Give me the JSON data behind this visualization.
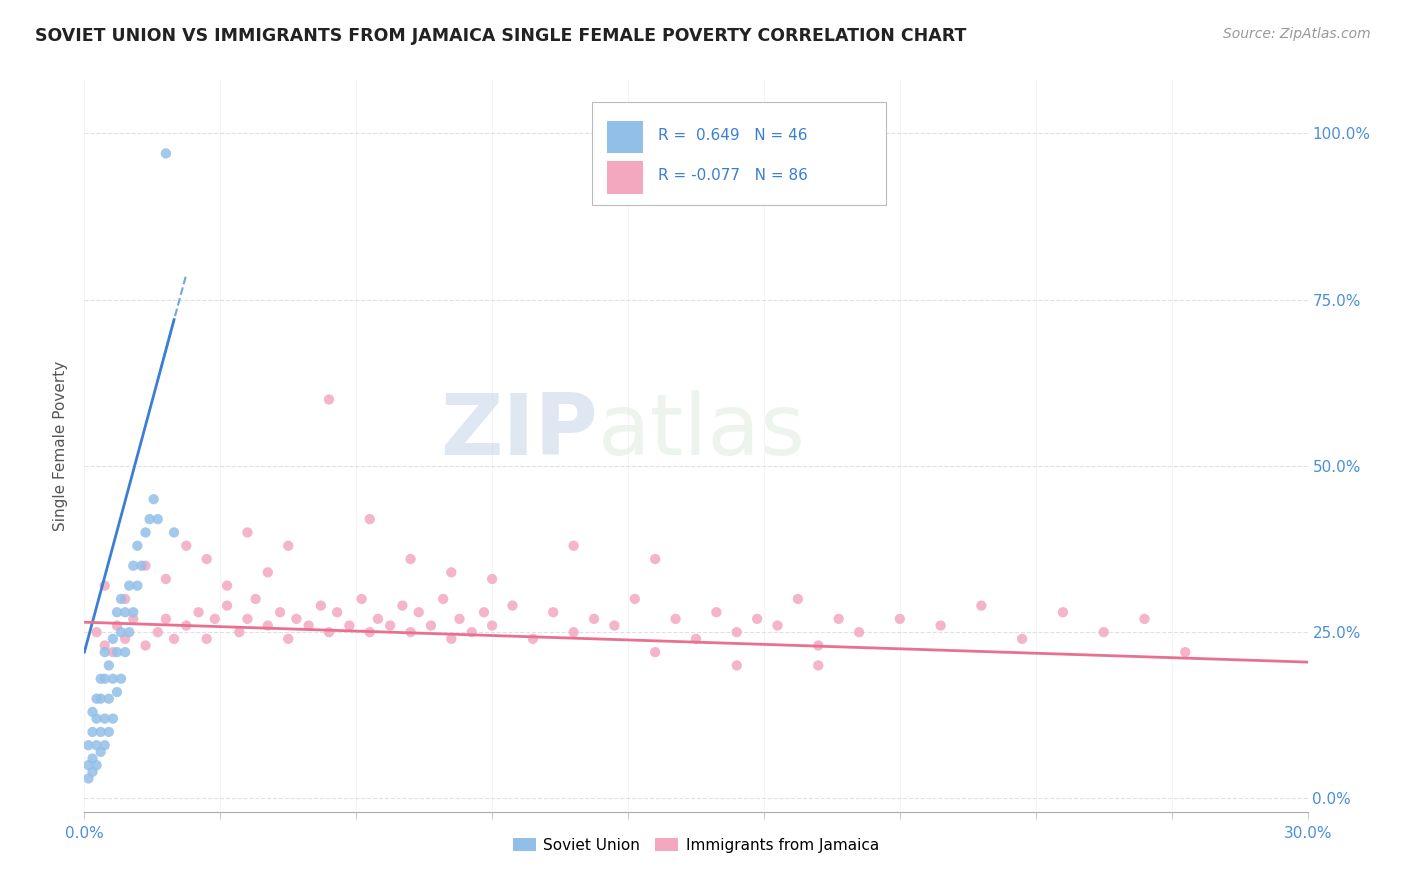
{
  "title": "SOVIET UNION VS IMMIGRANTS FROM JAMAICA SINGLE FEMALE POVERTY CORRELATION CHART",
  "source": "Source: ZipAtlas.com",
  "ylabel": "Single Female Poverty",
  "y_tick_labels": [
    "0.0%",
    "25.0%",
    "50.0%",
    "75.0%",
    "100.0%"
  ],
  "y_tick_values": [
    0.0,
    0.25,
    0.5,
    0.75,
    1.0
  ],
  "xlim": [
    0.0,
    0.3
  ],
  "ylim": [
    -0.02,
    1.08
  ],
  "r_soviet": 0.649,
  "n_soviet": 46,
  "r_jamaica": -0.077,
  "n_jamaica": 86,
  "soviet_color": "#92bfe8",
  "jamaica_color": "#f4a8c0",
  "soviet_line_color": "#3a7fd5",
  "jamaica_line_color": "#e87090",
  "background_color": "#ffffff",
  "soviet_points_x": [
    0.001,
    0.001,
    0.001,
    0.002,
    0.002,
    0.002,
    0.002,
    0.003,
    0.003,
    0.003,
    0.003,
    0.004,
    0.004,
    0.004,
    0.004,
    0.005,
    0.005,
    0.005,
    0.005,
    0.006,
    0.006,
    0.006,
    0.007,
    0.007,
    0.007,
    0.008,
    0.008,
    0.008,
    0.009,
    0.009,
    0.009,
    0.01,
    0.01,
    0.011,
    0.011,
    0.012,
    0.012,
    0.013,
    0.013,
    0.014,
    0.015,
    0.016,
    0.017,
    0.018,
    0.02,
    0.022
  ],
  "soviet_points_y": [
    0.03,
    0.05,
    0.08,
    0.04,
    0.06,
    0.1,
    0.13,
    0.05,
    0.08,
    0.12,
    0.15,
    0.07,
    0.1,
    0.15,
    0.18,
    0.08,
    0.12,
    0.18,
    0.22,
    0.1,
    0.15,
    0.2,
    0.12,
    0.18,
    0.24,
    0.16,
    0.22,
    0.28,
    0.18,
    0.25,
    0.3,
    0.22,
    0.28,
    0.25,
    0.32,
    0.28,
    0.35,
    0.32,
    0.38,
    0.35,
    0.4,
    0.42,
    0.45,
    0.42,
    0.97,
    0.4
  ],
  "jamaica_points_x": [
    0.003,
    0.005,
    0.007,
    0.008,
    0.01,
    0.012,
    0.015,
    0.018,
    0.02,
    0.022,
    0.025,
    0.028,
    0.03,
    0.032,
    0.035,
    0.038,
    0.04,
    0.042,
    0.045,
    0.048,
    0.05,
    0.052,
    0.055,
    0.058,
    0.06,
    0.062,
    0.065,
    0.068,
    0.07,
    0.072,
    0.075,
    0.078,
    0.08,
    0.082,
    0.085,
    0.088,
    0.09,
    0.092,
    0.095,
    0.098,
    0.1,
    0.105,
    0.11,
    0.115,
    0.12,
    0.125,
    0.13,
    0.135,
    0.14,
    0.145,
    0.15,
    0.155,
    0.16,
    0.165,
    0.17,
    0.175,
    0.18,
    0.185,
    0.19,
    0.2,
    0.21,
    0.22,
    0.23,
    0.24,
    0.25,
    0.26,
    0.27,
    0.005,
    0.01,
    0.015,
    0.02,
    0.025,
    0.03,
    0.035,
    0.04,
    0.045,
    0.05,
    0.06,
    0.07,
    0.08,
    0.09,
    0.1,
    0.12,
    0.14,
    0.16,
    0.18
  ],
  "jamaica_points_y": [
    0.25,
    0.23,
    0.22,
    0.26,
    0.24,
    0.27,
    0.23,
    0.25,
    0.27,
    0.24,
    0.26,
    0.28,
    0.24,
    0.27,
    0.29,
    0.25,
    0.27,
    0.3,
    0.26,
    0.28,
    0.24,
    0.27,
    0.26,
    0.29,
    0.25,
    0.28,
    0.26,
    0.3,
    0.25,
    0.27,
    0.26,
    0.29,
    0.25,
    0.28,
    0.26,
    0.3,
    0.24,
    0.27,
    0.25,
    0.28,
    0.26,
    0.29,
    0.24,
    0.28,
    0.25,
    0.27,
    0.26,
    0.3,
    0.22,
    0.27,
    0.24,
    0.28,
    0.25,
    0.27,
    0.26,
    0.3,
    0.23,
    0.27,
    0.25,
    0.27,
    0.26,
    0.29,
    0.24,
    0.28,
    0.25,
    0.27,
    0.22,
    0.32,
    0.3,
    0.35,
    0.33,
    0.38,
    0.36,
    0.32,
    0.4,
    0.34,
    0.38,
    0.6,
    0.42,
    0.36,
    0.34,
    0.33,
    0.38,
    0.36,
    0.2,
    0.2
  ],
  "trend_soviet_x0": 0.0,
  "trend_soviet_y0": 0.22,
  "trend_soviet_x1": 0.022,
  "trend_soviet_y1": 0.72,
  "trend_soviet_xdash0": 0.018,
  "trend_soviet_xdash1": 0.025,
  "trend_jamaica_x0": 0.0,
  "trend_jamaica_y0": 0.265,
  "trend_jamaica_x1": 0.3,
  "trend_jamaica_y1": 0.205
}
